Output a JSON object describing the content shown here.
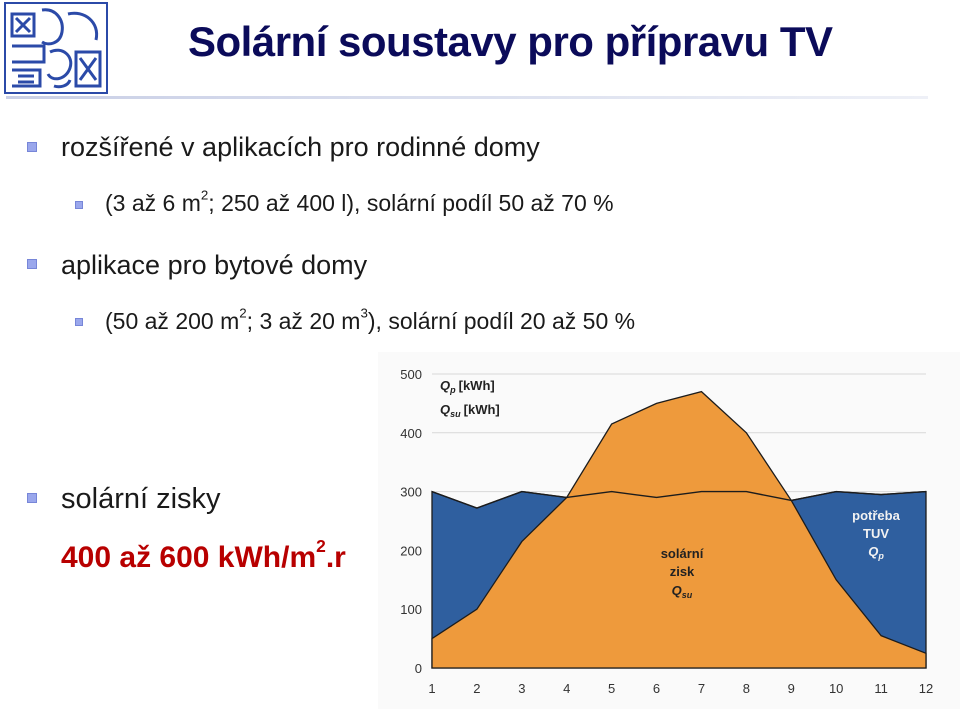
{
  "title": "Solární soustavy pro přípravu TV",
  "bullets": {
    "b1": "rozšířené v aplikacích pro rodinné domy",
    "b1_sub": {
      "p1": "(3 až 6 m",
      "sup1": "2",
      "p2": "; 250 až 400 l), solární podíl 50 až 70 %"
    },
    "b2": "aplikace pro bytové domy",
    "b2_sub": {
      "p1": "(50 až 200 m",
      "sup1": "2",
      "p2": "; 3 až 20 m",
      "sup2": "3",
      "p3": "), solární podíl 20 až 50 %"
    },
    "b3": "solární zisky",
    "b3_value": {
      "p1": "400 až 600 kWh/m",
      "sup1": "2",
      "p2": ".r"
    }
  },
  "colors": {
    "title": "#0b0b5a",
    "bullet": "#9aa7ec",
    "highlight": "#b80000",
    "demand": "#2f5f9f",
    "solar": "#ee9a3c"
  },
  "chart_data": {
    "type": "area",
    "x": [
      1,
      2,
      3,
      4,
      5,
      6,
      7,
      8,
      9,
      10,
      11,
      12
    ],
    "ylim": [
      0,
      500
    ],
    "yticks": [
      0,
      100,
      200,
      300,
      400,
      500
    ],
    "series": [
      {
        "name": "potřeba TUV Qp",
        "values": [
          300,
          272,
          300,
          290,
          300,
          290,
          300,
          300,
          285,
          300,
          295,
          300
        ]
      },
      {
        "name": "solární zisk Qsu",
        "values": [
          50,
          100,
          215,
          290,
          415,
          450,
          470,
          400,
          285,
          150,
          55,
          25
        ]
      }
    ],
    "legend": {
      "qp_sym": "Q",
      "qp_sub": "p",
      "qp_unit": "[kWh]",
      "qsu_sym": "Q",
      "qsu_sub": "su",
      "qsu_unit": "[kWh]"
    },
    "annotations": {
      "solar_line1": "solární",
      "solar_line2": "zisk",
      "solar_sym": "Q",
      "solar_sub": "su",
      "demand_line1": "potřeba",
      "demand_line2": "TUV",
      "demand_sym": "Q",
      "demand_sub": "p"
    }
  }
}
